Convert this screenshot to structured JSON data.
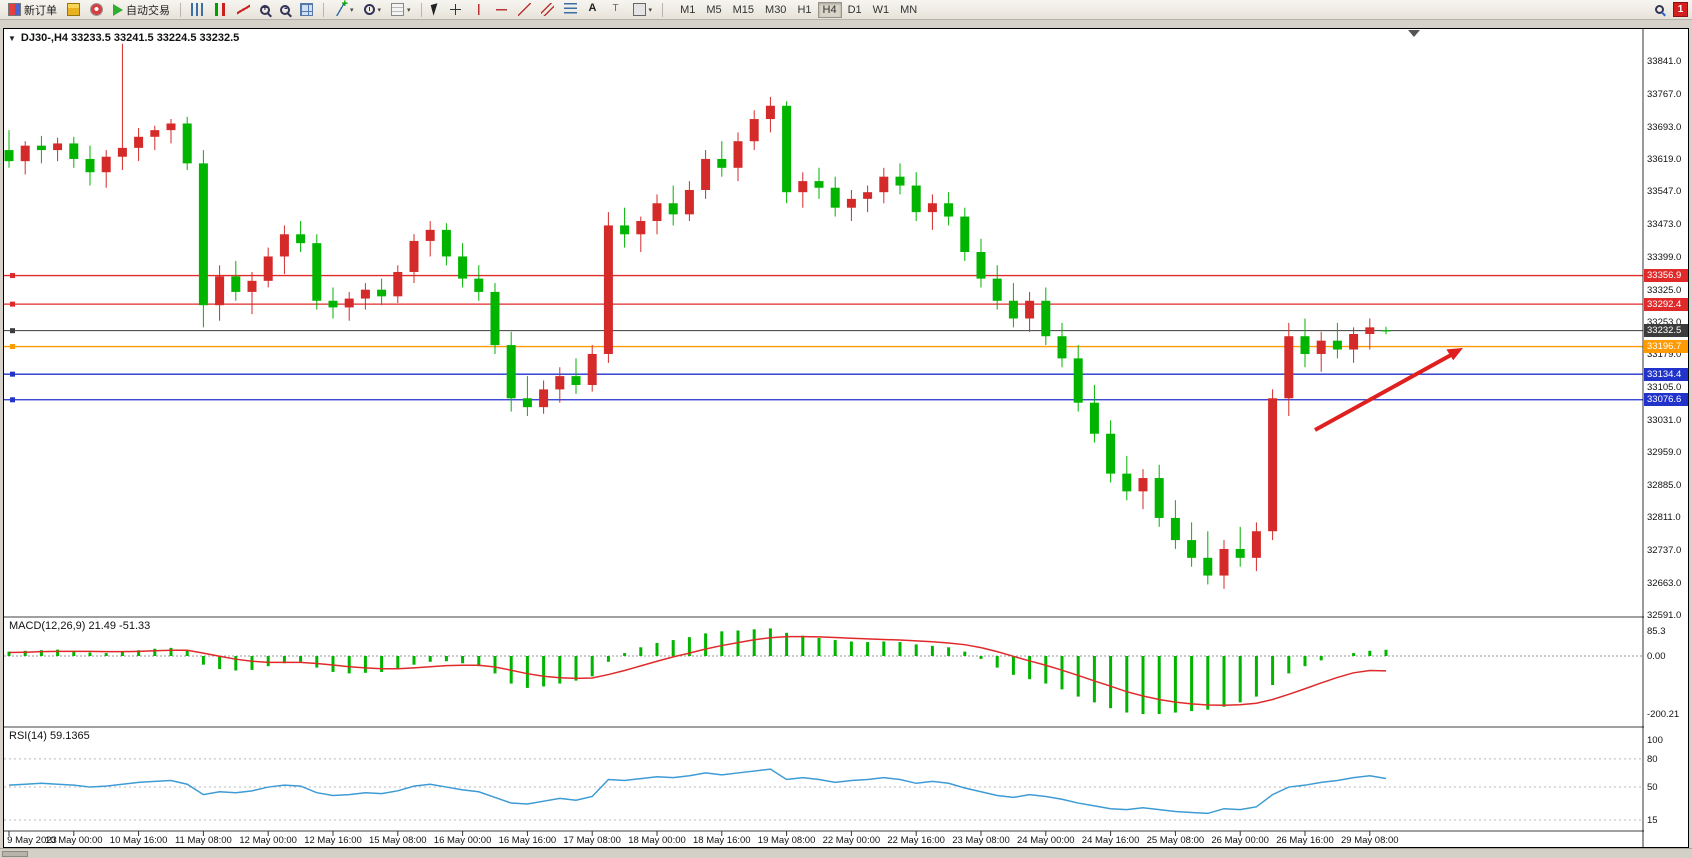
{
  "toolbar": {
    "new_order_label": "新订单",
    "autotrading_label": "自动交易",
    "timeframes": [
      "M1",
      "M5",
      "M15",
      "M30",
      "H1",
      "H4",
      "D1",
      "W1",
      "MN"
    ],
    "active_timeframe": "H4",
    "notification_count": "1"
  },
  "chart": {
    "header": "DJ30-,H4  33233.5 33241.5 33224.5 33232.5",
    "symbol": "DJ30-",
    "period": "H4",
    "price_scale_labels": [
      "33841.0",
      "33767.0",
      "33693.0",
      "33619.0",
      "33547.0",
      "33473.0",
      "33399.0",
      "33325.0",
      "33253.0",
      "33179.0",
      "33105.0",
      "33031.0",
      "32959.0",
      "32885.0",
      "32811.0",
      "32737.0",
      "32663.0",
      "32591.0"
    ],
    "time_labels": [
      "9 May 2023",
      "10 May 00:00",
      "10 May 16:00",
      "11 May 08:00",
      "12 May 00:00",
      "12 May 16:00",
      "15 May 08:00",
      "16 May 00:00",
      "16 May 16:00",
      "17 May 08:00",
      "18 May 00:00",
      "18 May 16:00",
      "19 May 08:00",
      "22 May 00:00",
      "22 May 16:00",
      "23 May 08:00",
      "24 May 00:00",
      "24 May 16:00",
      "25 May 08:00",
      "26 May 00:00",
      "26 May 16:00",
      "29 May 08:00"
    ],
    "levels": [
      {
        "value": "33356.9",
        "color": "#e02a2a",
        "type": "resistance-line"
      },
      {
        "value": "33292.4",
        "color": "#e02a2a",
        "type": "resistance-line"
      },
      {
        "value": "33232.5",
        "color": "#3c3c3c",
        "type": "current-price"
      },
      {
        "value": "33196.7",
        "color": "#ff9b00",
        "type": "support-line-orange"
      },
      {
        "value": "33134.4",
        "color": "#2233cc",
        "type": "support-line"
      },
      {
        "value": "33076.6",
        "color": "#2233cc",
        "type": "support-line"
      }
    ],
    "colors": {
      "up_candle": "#d42a2a",
      "down_candle": "#00b400",
      "macd_histogram": "#00b400",
      "macd_signal": "#e02a2a",
      "rsi_line": "#3d9bd5",
      "arrow": "#e01f1f"
    }
  },
  "macd_panel": {
    "label": "MACD(12,26,9) 21.49 -51.33",
    "scale_labels": [
      "85.3",
      "0.00",
      "-200.21"
    ]
  },
  "rsi_panel": {
    "label": "RSI(14) 59.1365",
    "scale_labels": [
      "100",
      "80",
      "50",
      "15"
    ],
    "levels": [
      80,
      50,
      15
    ]
  },
  "chart_data": {
    "type": "candlestick+indicators",
    "symbol": "DJ30-",
    "timeframe": "H4",
    "current_ohlc": {
      "open": 33233.5,
      "high": 33241.5,
      "low": 33224.5,
      "close": 33232.5
    },
    "price_range": [
      32591,
      33841
    ],
    "up_color_convention": "red-up-green-down (CN)",
    "candles_ohlc": [
      [
        33640,
        33685,
        33600,
        33615
      ],
      [
        33615,
        33660,
        33585,
        33650
      ],
      [
        33650,
        33672,
        33610,
        33640
      ],
      [
        33640,
        33668,
        33615,
        33655
      ],
      [
        33655,
        33670,
        33600,
        33620
      ],
      [
        33620,
        33650,
        33560,
        33590
      ],
      [
        33590,
        33640,
        33555,
        33625
      ],
      [
        33625,
        33880,
        33595,
        33645
      ],
      [
        33645,
        33690,
        33615,
        33670
      ],
      [
        33670,
        33695,
        33640,
        33685
      ],
      [
        33685,
        33710,
        33655,
        33700
      ],
      [
        33700,
        33715,
        33595,
        33610
      ],
      [
        33610,
        33640,
        33240,
        33290
      ],
      [
        33290,
        33380,
        33255,
        33355
      ],
      [
        33355,
        33390,
        33300,
        33320
      ],
      [
        33320,
        33365,
        33270,
        33345
      ],
      [
        33345,
        33420,
        33330,
        33400
      ],
      [
        33400,
        33470,
        33360,
        33450
      ],
      [
        33450,
        33480,
        33410,
        33430
      ],
      [
        33430,
        33450,
        33280,
        33300
      ],
      [
        33300,
        33330,
        33260,
        33285
      ],
      [
        33285,
        33320,
        33255,
        33305
      ],
      [
        33305,
        33340,
        33280,
        33325
      ],
      [
        33325,
        33350,
        33290,
        33310
      ],
      [
        33310,
        33380,
        33295,
        33365
      ],
      [
        33365,
        33450,
        33340,
        33435
      ],
      [
        33435,
        33480,
        33400,
        33460
      ],
      [
        33460,
        33475,
        33380,
        33400
      ],
      [
        33400,
        33430,
        33330,
        33350
      ],
      [
        33350,
        33380,
        33300,
        33320
      ],
      [
        33320,
        33340,
        33180,
        33200
      ],
      [
        33200,
        33230,
        33050,
        33080
      ],
      [
        33080,
        33130,
        33040,
        33060
      ],
      [
        33060,
        33120,
        33045,
        33100
      ],
      [
        33100,
        33150,
        33070,
        33130
      ],
      [
        33130,
        33170,
        33090,
        33110
      ],
      [
        33110,
        33200,
        33095,
        33180
      ],
      [
        33180,
        33500,
        33160,
        33470
      ],
      [
        33470,
        33510,
        33420,
        33450
      ],
      [
        33450,
        33490,
        33410,
        33480
      ],
      [
        33480,
        33540,
        33450,
        33520
      ],
      [
        33520,
        33560,
        33470,
        33495
      ],
      [
        33495,
        33570,
        33480,
        33550
      ],
      [
        33550,
        33640,
        33530,
        33620
      ],
      [
        33620,
        33660,
        33580,
        33600
      ],
      [
        33600,
        33680,
        33570,
        33660
      ],
      [
        33660,
        33730,
        33640,
        33710
      ],
      [
        33710,
        33760,
        33680,
        33740
      ],
      [
        33740,
        33750,
        33520,
        33545
      ],
      [
        33545,
        33590,
        33510,
        33570
      ],
      [
        33570,
        33600,
        33530,
        33555
      ],
      [
        33555,
        33580,
        33490,
        33510
      ],
      [
        33510,
        33550,
        33480,
        33530
      ],
      [
        33530,
        33560,
        33500,
        33545
      ],
      [
        33545,
        33600,
        33520,
        33580
      ],
      [
        33580,
        33610,
        33540,
        33560
      ],
      [
        33560,
        33590,
        33480,
        33500
      ],
      [
        33500,
        33540,
        33460,
        33520
      ],
      [
        33520,
        33545,
        33470,
        33490
      ],
      [
        33490,
        33510,
        33390,
        33410
      ],
      [
        33410,
        33440,
        33330,
        33350
      ],
      [
        33350,
        33380,
        33280,
        33300
      ],
      [
        33300,
        33340,
        33240,
        33260
      ],
      [
        33260,
        33320,
        33230,
        33300
      ],
      [
        33300,
        33330,
        33200,
        33220
      ],
      [
        33220,
        33250,
        33150,
        33170
      ],
      [
        33170,
        33200,
        33050,
        33070
      ],
      [
        33070,
        33110,
        32980,
        33000
      ],
      [
        33000,
        33030,
        32890,
        32910
      ],
      [
        32910,
        32950,
        32850,
        32870
      ],
      [
        32870,
        32920,
        32830,
        32900
      ],
      [
        32900,
        32930,
        32790,
        32810
      ],
      [
        32810,
        32850,
        32740,
        32760
      ],
      [
        32760,
        32800,
        32700,
        32720
      ],
      [
        32720,
        32780,
        32660,
        32680
      ],
      [
        32680,
        32760,
        32650,
        32740
      ],
      [
        32740,
        32790,
        32700,
        32720
      ],
      [
        32720,
        32800,
        32690,
        32780
      ],
      [
        32780,
        33100,
        32760,
        33080
      ],
      [
        33080,
        33250,
        33040,
        33220
      ],
      [
        33220,
        33260,
        33150,
        33180
      ],
      [
        33180,
        33230,
        33140,
        33210
      ],
      [
        33210,
        33250,
        33170,
        33190
      ],
      [
        33190,
        33240,
        33160,
        33225
      ],
      [
        33225,
        33260,
        33190,
        33240
      ],
      [
        33233.5,
        33241.5,
        33224.5,
        33232.5
      ]
    ],
    "macd": {
      "label_values": [
        21.49,
        -51.33
      ],
      "range": [
        -200.21,
        85.3
      ],
      "histogram": [
        15,
        18,
        20,
        22,
        18,
        12,
        10,
        15,
        20,
        25,
        28,
        20,
        -30,
        -45,
        -50,
        -48,
        -35,
        -25,
        -20,
        -40,
        -55,
        -60,
        -58,
        -55,
        -45,
        -30,
        -20,
        -18,
        -25,
        -35,
        -60,
        -95,
        -110,
        -105,
        -95,
        -85,
        -70,
        -20,
        10,
        30,
        45,
        55,
        65,
        78,
        85,
        88,
        92,
        95,
        80,
        70,
        62,
        55,
        50,
        48,
        50,
        48,
        40,
        35,
        30,
        15,
        -10,
        -40,
        -65,
        -80,
        -95,
        -115,
        -140,
        -160,
        -180,
        -195,
        -200,
        -200,
        -195,
        -190,
        -185,
        -175,
        -160,
        -140,
        -100,
        -60,
        -35,
        -15,
        0,
        10,
        18,
        21.49
      ],
      "signal": [
        12,
        13,
        15,
        16,
        16,
        16,
        15,
        15,
        16,
        18,
        20,
        20,
        10,
        -1,
        -11,
        -18,
        -22,
        -22,
        -22,
        -26,
        -31,
        -37,
        -41,
        -44,
        -44,
        -41,
        -37,
        -33,
        -32,
        -32,
        -38,
        -49,
        -61,
        -70,
        -75,
        -77,
        -76,
        -64,
        -50,
        -34,
        -18,
        -3,
        10,
        24,
        36,
        46,
        56,
        63,
        67,
        67,
        66,
        64,
        61,
        59,
        57,
        55,
        52,
        49,
        45,
        39,
        29,
        15,
        -1,
        -17,
        -32,
        -49,
        -67,
        -86,
        -104,
        -123,
        -138,
        -150,
        -159,
        -165,
        -169,
        -170,
        -168,
        -163,
        -150,
        -132,
        -113,
        -93,
        -74,
        -58,
        -50,
        -51.33
      ]
    },
    "rsi": {
      "current": 59.1365,
      "range": [
        15,
        100
      ],
      "values": [
        52,
        53,
        54,
        53,
        52,
        50,
        51,
        53,
        55,
        56,
        57,
        53,
        42,
        45,
        44,
        46,
        50,
        52,
        51,
        44,
        41,
        42,
        44,
        43,
        46,
        51,
        53,
        50,
        47,
        45,
        39,
        33,
        32,
        35,
        38,
        36,
        40,
        58,
        57,
        59,
        61,
        60,
        62,
        65,
        63,
        65,
        67,
        69,
        58,
        60,
        58,
        55,
        57,
        58,
        60,
        58,
        54,
        56,
        54,
        49,
        45,
        41,
        39,
        42,
        40,
        37,
        33,
        30,
        27,
        26,
        28,
        26,
        24,
        23,
        22,
        27,
        26,
        29,
        42,
        50,
        52,
        55,
        57,
        60,
        62,
        59.1365
      ]
    },
    "annotations": [
      {
        "type": "arrow",
        "color": "red",
        "from": {
          "bar_index": 80.6,
          "price": 33009
        },
        "to": {
          "bar_index": 89.8,
          "price": 33193
        }
      }
    ]
  }
}
